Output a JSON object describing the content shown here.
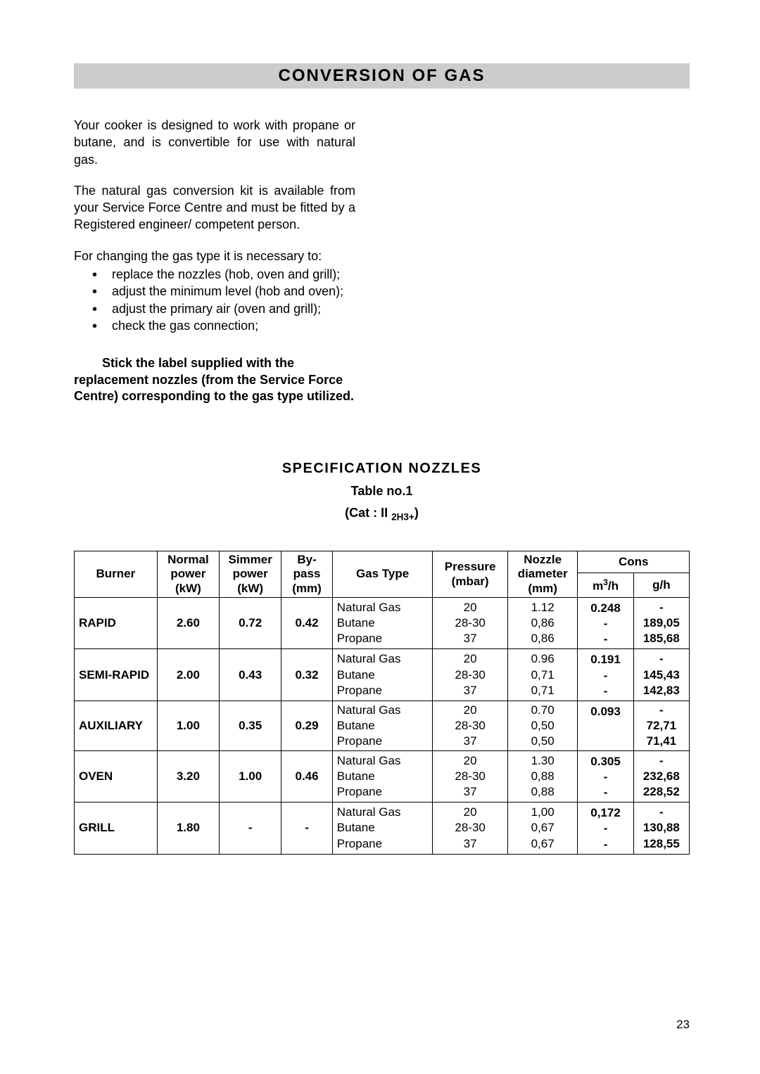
{
  "banner_title": "CONVERSION OF GAS",
  "para1": "Your cooker is designed to work with propane or butane, and is convertible for use with natural gas.",
  "para2": "The natural gas conversion kit is available from your Service Force Centre and must be fitted by a Registered engineer/ competent person.",
  "steps_intro": "For changing the gas type it is necessary to:",
  "steps": [
    "replace the nozzles (hob, oven and grill);",
    "adjust the minimum level (hob and oven);",
    "adjust the primary air (oven and grill);",
    "check the gas connection;"
  ],
  "bold_note_line1": "Stick the label supplied with the",
  "bold_note_rest": "replacement nozzles (from the Service Force Centre) corresponding to the gas type utilized.",
  "spec_title": "SPECIFICATION NOZZLES",
  "table_no": "Table no.1",
  "cat_prefix": "(Cat : II ",
  "cat_sub": "2H3+",
  "cat_suffix": ")",
  "headers": {
    "burner": "Burner",
    "normal": "Normal power (kW)",
    "simmer": "Simmer power (kW)",
    "bypass": "By-pass (mm)",
    "gastype": "Gas Type",
    "pressure": "Pressure (mbar)",
    "nozzle": "Nozzle diameter (mm)",
    "cons": "Cons",
    "cons_m3h_pre": "m",
    "cons_m3h_sup": "3",
    "cons_m3h_post": "/h",
    "cons_gh": "g/h"
  },
  "gas_lines": "Natural Gas\nButane\nPropane",
  "pressure_lines": "20\n28-30\n37",
  "rows": [
    {
      "burner": "RAPID",
      "normal": "2.60",
      "simmer": "0.72",
      "bypass": "0.42",
      "nozzle": "1.12\n0,86\n0,86",
      "m3h": "0.248\n-\n-",
      "gh": "-\n189,05\n185,68"
    },
    {
      "burner": "SEMI-RAPID",
      "normal": "2.00",
      "simmer": "0.43",
      "bypass": "0.32",
      "nozzle": "0.96\n0,71\n0,71",
      "m3h": "0.191\n-\n-",
      "gh": "-\n145,43\n142,83"
    },
    {
      "burner": "AUXILIARY",
      "normal": "1.00",
      "simmer": "0.35",
      "bypass": "0.29",
      "nozzle": "0.70\n0,50\n0,50",
      "m3h": "0.093",
      "gh": "-\n72,71\n71,41"
    },
    {
      "burner": "OVEN",
      "normal": "3.20",
      "simmer": "1.00",
      "bypass": "0.46",
      "nozzle": "1.30\n0,88\n0,88",
      "m3h": "0.305\n-\n-",
      "gh": "-\n232,68\n228,52"
    },
    {
      "burner": "GRILL",
      "normal": "1.80",
      "simmer": "-",
      "bypass": "-",
      "nozzle": "1,00\n0,67\n0,67",
      "m3h": "0,172\n-\n-",
      "gh": "-\n130,88\n128,55"
    }
  ],
  "page_number": "23"
}
